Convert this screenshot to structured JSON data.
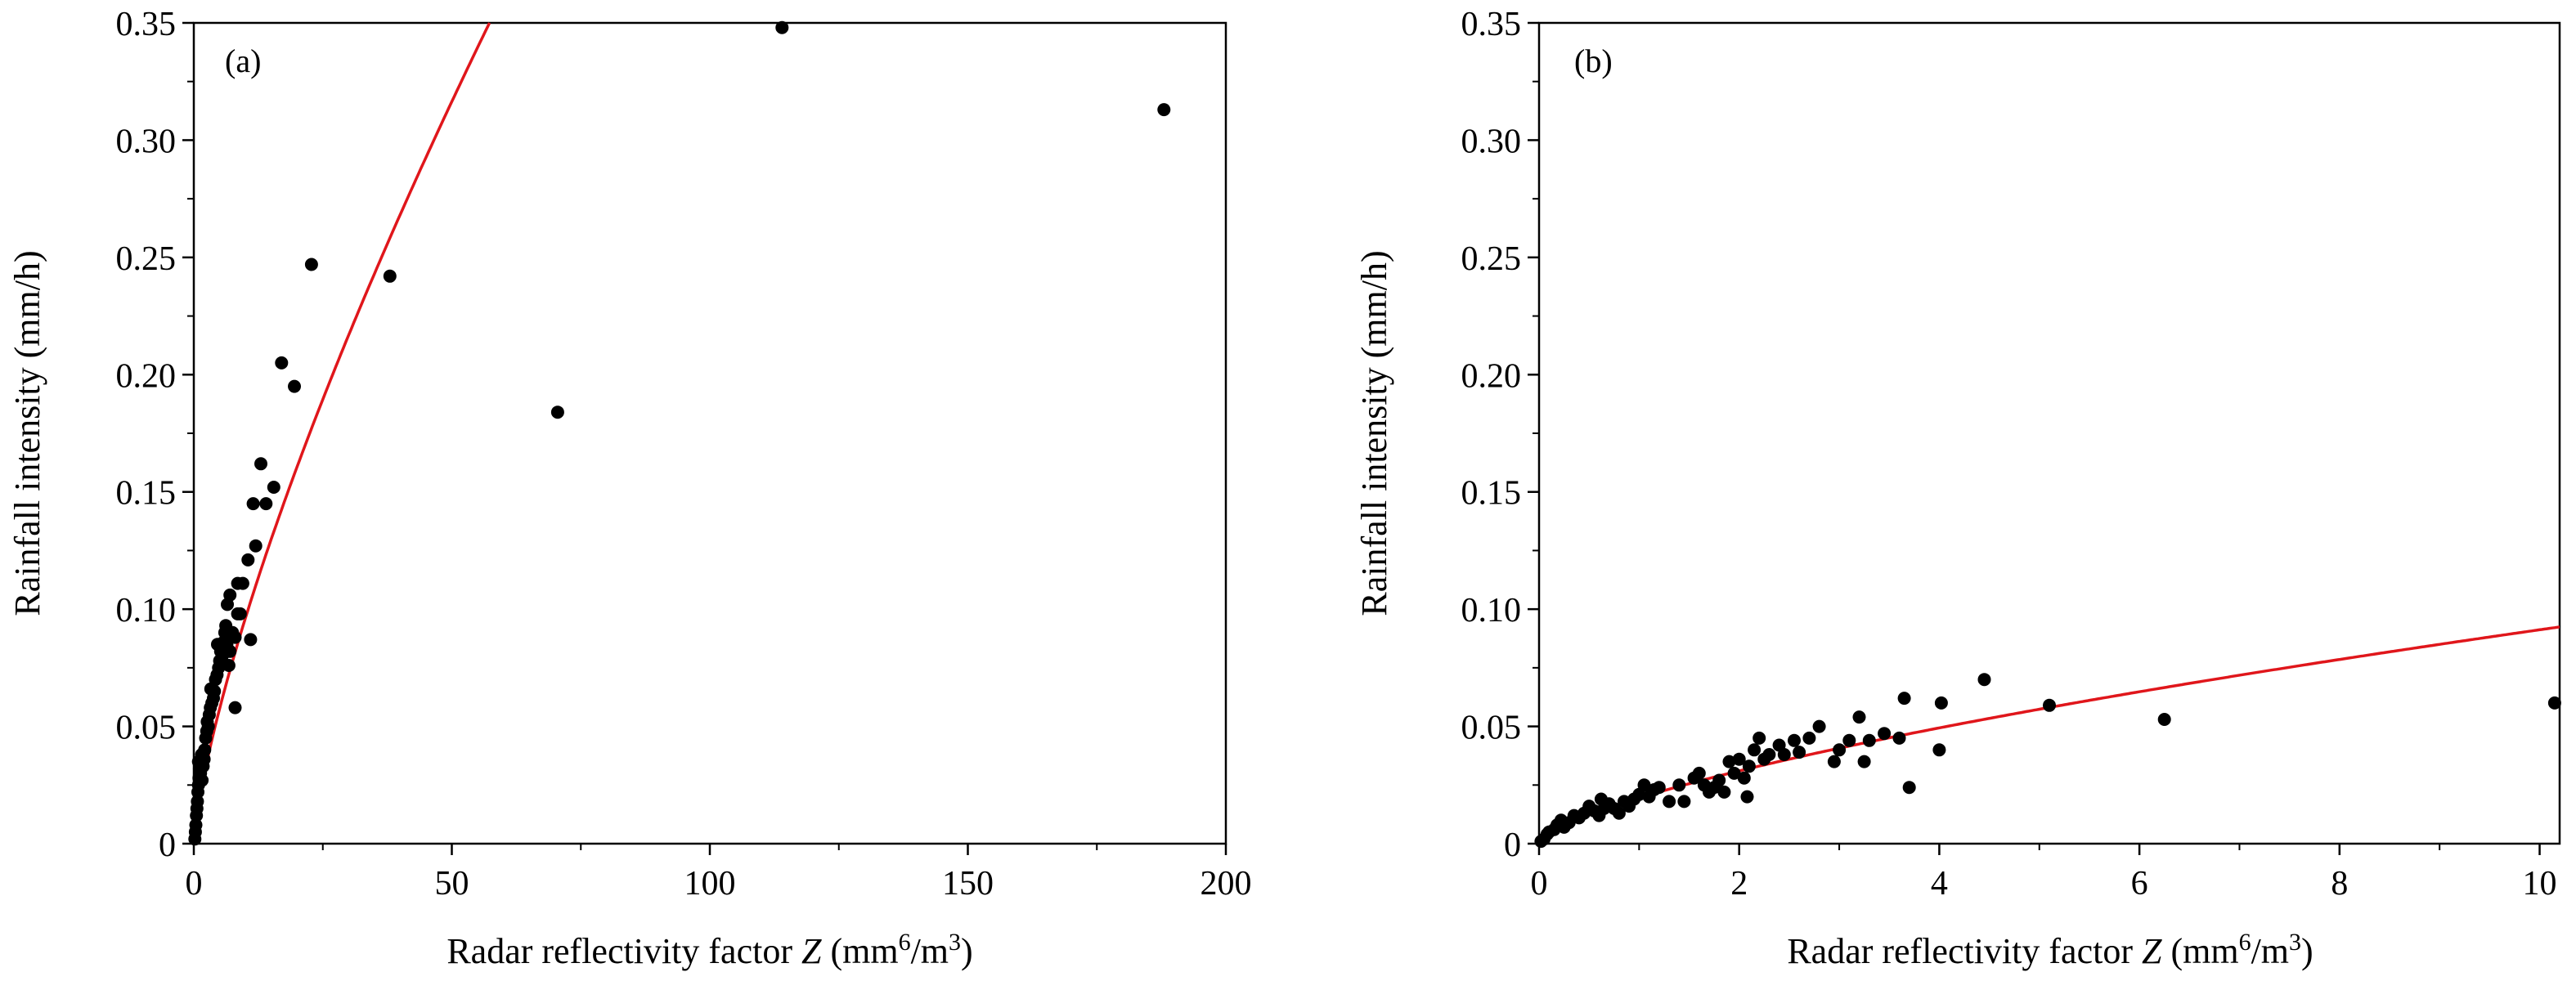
{
  "colors": {
    "points": "#000000",
    "fit_line": "#e0161b",
    "axes": "#000000"
  },
  "chart_data": [
    {
      "type": "scatter",
      "panel_label": "(a)",
      "xlabel": {
        "text": "Radar reflectivity factor ",
        "italic": "Z",
        "unit_open": " (mm",
        "sup": "6",
        "unit_close": "/m",
        "sup2": "3",
        "unit_end": ")"
      },
      "ylabel": "Rainfall intensity (mm/h)",
      "xlim": [
        0,
        200
      ],
      "ylim": [
        0,
        0.35
      ],
      "xticks": [
        0,
        50,
        100,
        150,
        200
      ],
      "xtick_labels": [
        "0",
        "50",
        "100",
        "150",
        "200"
      ],
      "yticks": [
        0,
        0.05,
        0.1,
        0.15,
        0.2,
        0.25,
        0.3,
        0.35
      ],
      "ytick_labels": [
        "0",
        "0.05",
        "0.10",
        "0.15",
        "0.20",
        "0.25",
        "0.30",
        "0.35"
      ],
      "fit": {
        "a": 0.0175,
        "b": 0.74
      },
      "points": [
        [
          0.2,
          0.002
        ],
        [
          0.3,
          0.005
        ],
        [
          0.4,
          0.008
        ],
        [
          0.5,
          0.012
        ],
        [
          0.6,
          0.015
        ],
        [
          0.7,
          0.018
        ],
        [
          0.8,
          0.022
        ],
        [
          0.9,
          0.025
        ],
        [
          1.0,
          0.028
        ],
        [
          1.1,
          0.032
        ],
        [
          0.9,
          0.035
        ],
        [
          1.3,
          0.03
        ],
        [
          1.5,
          0.038
        ],
        [
          1.6,
          0.027
        ],
        [
          1.8,
          0.033
        ],
        [
          2.0,
          0.036
        ],
        [
          2.1,
          0.04
        ],
        [
          2.3,
          0.045
        ],
        [
          2.5,
          0.048
        ],
        [
          2.6,
          0.052
        ],
        [
          2.8,
          0.05
        ],
        [
          3.0,
          0.055
        ],
        [
          3.2,
          0.058
        ],
        [
          3.5,
          0.06
        ],
        [
          3.8,
          0.062
        ],
        [
          3.3,
          0.066
        ],
        [
          4.0,
          0.065
        ],
        [
          4.2,
          0.07
        ],
        [
          4.5,
          0.072
        ],
        [
          4.8,
          0.075
        ],
        [
          5.0,
          0.078
        ],
        [
          5.2,
          0.082
        ],
        [
          4.6,
          0.085
        ],
        [
          5.5,
          0.08
        ],
        [
          5.8,
          0.086
        ],
        [
          6.0,
          0.09
        ],
        [
          6.2,
          0.093
        ],
        [
          6.4,
          0.085
        ],
        [
          6.8,
          0.076
        ],
        [
          7.0,
          0.082
        ],
        [
          7.5,
          0.09
        ],
        [
          8.0,
          0.088
        ],
        [
          8.5,
          0.098
        ],
        [
          9.0,
          0.098
        ],
        [
          6.5,
          0.102
        ],
        [
          7.0,
          0.106
        ],
        [
          8.0,
          0.058
        ],
        [
          8.5,
          0.111
        ],
        [
          9.5,
          0.111
        ],
        [
          10.5,
          0.121
        ],
        [
          11.0,
          0.087
        ],
        [
          11.5,
          0.145
        ],
        [
          12.0,
          0.127
        ],
        [
          13.0,
          0.162
        ],
        [
          14.0,
          0.145
        ],
        [
          15.5,
          0.152
        ],
        [
          17.0,
          0.205
        ],
        [
          19.5,
          0.195
        ],
        [
          22.8,
          0.247
        ],
        [
          38.0,
          0.242
        ],
        [
          70.5,
          0.184
        ],
        [
          114.0,
          0.348
        ],
        [
          188.0,
          0.313
        ]
      ]
    },
    {
      "type": "scatter",
      "panel_label": "(b)",
      "xlabel": {
        "text": "Radar reflectivity factor ",
        "italic": "Z",
        "unit_open": " (mm",
        "sup": "6",
        "unit_close": "/m",
        "sup2": "3",
        "unit_end": ")"
      },
      "ylabel": "Rainfall intensity (mm/h)",
      "xlim": [
        0,
        10.2
      ],
      "ylim": [
        0,
        0.35
      ],
      "xticks": [
        0,
        2,
        4,
        6,
        8,
        10
      ],
      "xtick_labels": [
        "0",
        "2",
        "4",
        "6",
        "8",
        "10"
      ],
      "yticks": [
        0,
        0.05,
        0.1,
        0.15,
        0.2,
        0.25,
        0.3,
        0.35
      ],
      "ytick_labels": [
        "0",
        "0.05",
        "0.10",
        "0.15",
        "0.20",
        "0.25",
        "0.30",
        "0.35"
      ],
      "fit": {
        "a": 0.0195,
        "b": 0.67
      },
      "points": [
        [
          0.02,
          0.001
        ],
        [
          0.05,
          0.002
        ],
        [
          0.08,
          0.004
        ],
        [
          0.1,
          0.005
        ],
        [
          0.15,
          0.006
        ],
        [
          0.18,
          0.008
        ],
        [
          0.22,
          0.01
        ],
        [
          0.25,
          0.007
        ],
        [
          0.3,
          0.009
        ],
        [
          0.35,
          0.012
        ],
        [
          0.4,
          0.011
        ],
        [
          0.45,
          0.013
        ],
        [
          0.5,
          0.016
        ],
        [
          0.55,
          0.014
        ],
        [
          0.6,
          0.012
        ],
        [
          0.62,
          0.019
        ],
        [
          0.65,
          0.015
        ],
        [
          0.7,
          0.017
        ],
        [
          0.75,
          0.015
        ],
        [
          0.8,
          0.013
        ],
        [
          0.85,
          0.018
        ],
        [
          0.9,
          0.016
        ],
        [
          0.95,
          0.019
        ],
        [
          1.0,
          0.021
        ],
        [
          1.05,
          0.025
        ],
        [
          1.1,
          0.02
        ],
        [
          1.15,
          0.023
        ],
        [
          1.2,
          0.024
        ],
        [
          1.3,
          0.018
        ],
        [
          1.4,
          0.025
        ],
        [
          1.45,
          0.018
        ],
        [
          1.55,
          0.028
        ],
        [
          1.6,
          0.03
        ],
        [
          1.65,
          0.025
        ],
        [
          1.7,
          0.022
        ],
        [
          1.75,
          0.024
        ],
        [
          1.8,
          0.027
        ],
        [
          1.85,
          0.022
        ],
        [
          1.9,
          0.035
        ],
        [
          1.95,
          0.03
        ],
        [
          2.0,
          0.036
        ],
        [
          2.05,
          0.028
        ],
        [
          2.08,
          0.02
        ],
        [
          2.1,
          0.033
        ],
        [
          2.15,
          0.04
        ],
        [
          2.2,
          0.045
        ],
        [
          2.25,
          0.036
        ],
        [
          2.3,
          0.038
        ],
        [
          2.4,
          0.042
        ],
        [
          2.45,
          0.038
        ],
        [
          2.55,
          0.044
        ],
        [
          2.6,
          0.039
        ],
        [
          2.7,
          0.045
        ],
        [
          2.8,
          0.05
        ],
        [
          2.95,
          0.035
        ],
        [
          3.0,
          0.04
        ],
        [
          3.1,
          0.044
        ],
        [
          3.2,
          0.054
        ],
        [
          3.25,
          0.035
        ],
        [
          3.3,
          0.044
        ],
        [
          3.45,
          0.047
        ],
        [
          3.6,
          0.045
        ],
        [
          3.65,
          0.062
        ],
        [
          3.7,
          0.024
        ],
        [
          4.0,
          0.04
        ],
        [
          4.02,
          0.06
        ],
        [
          4.45,
          0.07
        ],
        [
          5.1,
          0.059
        ],
        [
          6.25,
          0.053
        ],
        [
          10.15,
          0.06
        ]
      ]
    }
  ]
}
